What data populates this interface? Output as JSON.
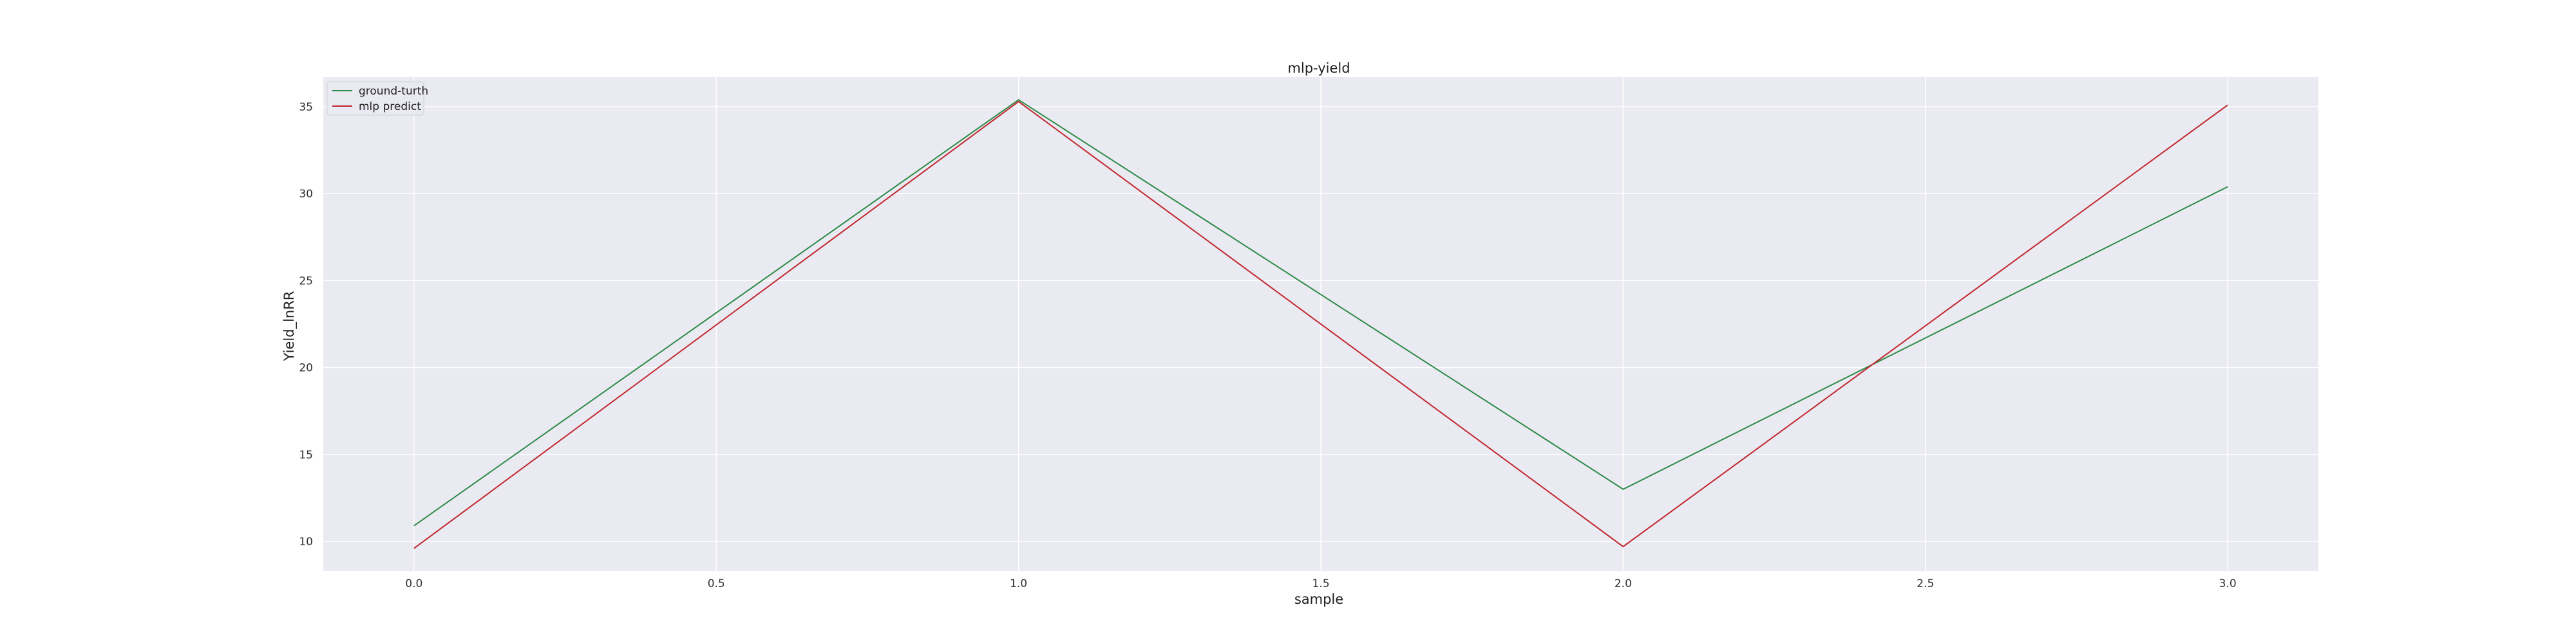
{
  "chart_data": {
    "type": "line",
    "title": "mlp-yield",
    "xlabel": "sample",
    "ylabel": "Yield_lnRR",
    "x": [
      0,
      1,
      2,
      3
    ],
    "series": [
      {
        "name": "ground-turth",
        "values": [
          10.9,
          35.4,
          13.0,
          30.4
        ],
        "color": "#2e8b47"
      },
      {
        "name": "mlp predict",
        "values": [
          9.6,
          35.3,
          9.7,
          35.1
        ],
        "color": "#c1272d"
      }
    ],
    "xlim": [
      -0.15,
      3.15
    ],
    "ylim": [
      8.3,
      36.7
    ],
    "xticks": [
      0.0,
      0.5,
      1.0,
      1.5,
      2.0,
      2.5,
      3.0
    ],
    "xtick_labels": [
      "0.0",
      "0.5",
      "1.0",
      "1.5",
      "2.0",
      "2.5",
      "3.0"
    ],
    "yticks": [
      10,
      15,
      20,
      25,
      30,
      35
    ],
    "ytick_labels": [
      "10",
      "15",
      "20",
      "25",
      "30",
      "35"
    ],
    "grid": true,
    "legend_position": "top-left",
    "background_color": "#eaeaf2",
    "grid_color": "#ffffff"
  }
}
